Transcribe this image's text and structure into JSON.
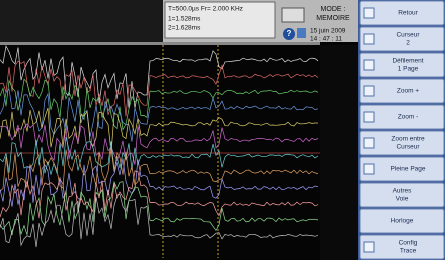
{
  "header": {
    "time_base": "T=500.0µs  Fr= 2.000 KHz",
    "cursor_1": "1=1.528ms",
    "cursor_2": "2=1.628ms",
    "mode": "MODE :",
    "mode_value": "MEMOIRE",
    "date": "15 juin 2009",
    "time": "14 : 47 : 11"
  },
  "menu": [
    {
      "lines": [
        "Retour"
      ]
    },
    {
      "lines": [
        "Curseur",
        "2"
      ]
    },
    {
      "lines": [
        "Défilement",
        "1 Page"
      ]
    },
    {
      "lines": [
        "Zoom +"
      ]
    },
    {
      "lines": [
        "Zoom -"
      ]
    },
    {
      "lines": [
        "Zoom entre",
        "Curseur"
      ]
    },
    {
      "lines": [
        "Pleine Page"
      ]
    },
    {
      "lines": [
        "Autres",
        "Voie"
      ]
    },
    {
      "lines": [
        "Horloge"
      ]
    },
    {
      "lines": [
        "Config",
        "Trace"
      ]
    }
  ]
}
